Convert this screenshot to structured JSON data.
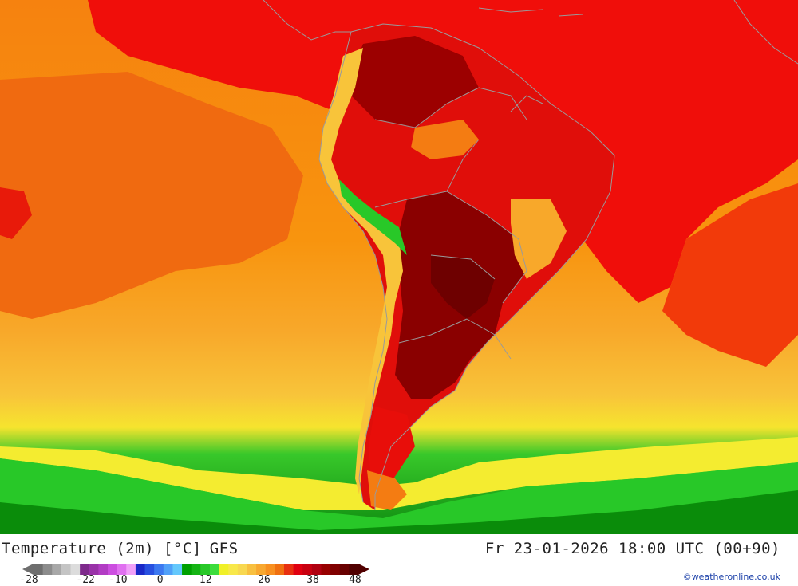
{
  "title": {
    "variable": "Temperature (2m) [°C]",
    "model": "GFS"
  },
  "valid_time": "Fr 23-01-2026 18:00 UTC (00+90)",
  "colorbar": {
    "unit": "°C",
    "tick_labels": [
      "-28",
      "-22",
      "-10",
      "0",
      "12",
      "26",
      "38",
      "48"
    ],
    "colors": [
      "#6e6e6e",
      "#8c8c8c",
      "#a8a8a8",
      "#c4c4c4",
      "#dcdcdc",
      "#7e2a8c",
      "#9932a8",
      "#b23cc4",
      "#cc4ee0",
      "#e070f0",
      "#f0a0f8",
      "#1a28c8",
      "#2850e0",
      "#3c78f0",
      "#50a0f8",
      "#64c8fc",
      "#00a000",
      "#14b414",
      "#28c828",
      "#3cdc3c",
      "#f0f028",
      "#f8e84a",
      "#f8d850",
      "#f8c040",
      "#f8a830",
      "#f89020",
      "#f07010",
      "#e83010",
      "#e00010",
      "#c80010",
      "#b00010",
      "#980000",
      "#800000",
      "#680000",
      "#500000"
    ]
  },
  "credit": "©weatheronline.co.uk",
  "map_colors": {
    "hot_dark": "#6e0000",
    "hot": "#9c0000",
    "red": "#e80e0a",
    "orange_red": "#f23a0a",
    "orange": "#f47c12",
    "light_orange": "#f8a82a",
    "yellow_orange": "#f8c43a",
    "yellow": "#f4f028",
    "green": "#28c828",
    "dark_green": "#0a8c0a",
    "border": "#9a9a9a"
  }
}
